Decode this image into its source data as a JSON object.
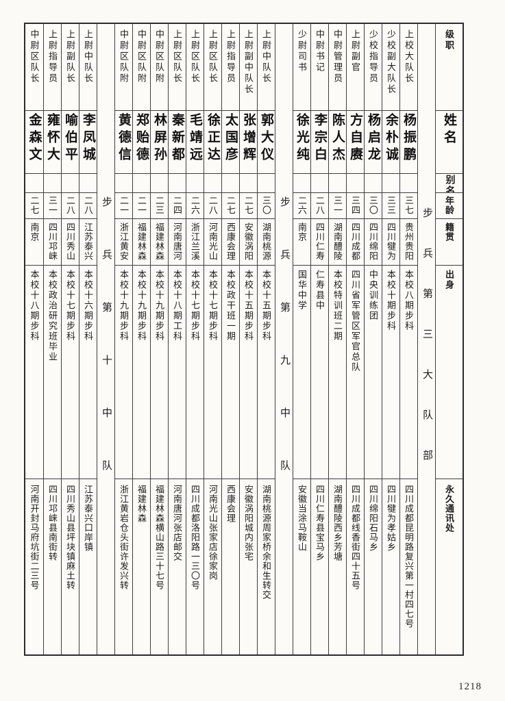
{
  "page_number": "1218",
  "column_headers": {
    "rank": "级职",
    "name": "姓名",
    "alias": "别名",
    "age": "年龄",
    "origin": "籍贯",
    "background": "出身",
    "address": "永久通讯处"
  },
  "sections": [
    {
      "title": "步兵第三大队部",
      "people": [
        {
          "rank": "上校大队长",
          "name": "杨振鹏",
          "alias": "",
          "age": "三七",
          "origin": "贵州贵阳",
          "background": "本校八期步科",
          "address": "四川成都昆明路复兴第一村四七号"
        },
        {
          "rank": "少校副大队长",
          "name": "余朴诚",
          "alias": "",
          "age": "三三",
          "origin": "四川犍为",
          "background": "本校十期步科",
          "address": "四川犍为孝姑乡"
        },
        {
          "rank": "少校指导员",
          "name": "杨启龙",
          "alias": "",
          "age": "三〇",
          "origin": "四川绵阳",
          "background": "中央训练团",
          "address": "四川绵阳石马乡"
        },
        {
          "rank": "上尉副官",
          "name": "方自赓",
          "alias": "",
          "age": "三四",
          "origin": "四川成都",
          "background": "四川省军管区军官总队",
          "address": "四川成都线香街四十五号"
        },
        {
          "rank": "中尉管理员",
          "name": "陈人杰",
          "alias": "",
          "age": "三一",
          "origin": "湖南醴陵",
          "background": "本校特训班二期",
          "address": "湖南醴陵西乡芳塘"
        },
        {
          "rank": "中尉书记",
          "name": "李宗白",
          "alias": "",
          "age": "二八",
          "origin": "四川仁寿",
          "background": "仁寿县中",
          "address": "四川仁寿县宝马乡"
        },
        {
          "rank": "少尉司书",
          "name": "徐光纯",
          "alias": "",
          "age": "二六",
          "origin": "南京",
          "background": "国华中学",
          "address": "安徽当涂马鞍山"
        }
      ]
    },
    {
      "title": "步兵第九中队",
      "people": [
        {
          "rank": "上尉中队长",
          "name": "郭大仪",
          "alias": "",
          "age": "三〇",
          "origin": "湖南桃源",
          "background": "本校十五期步科",
          "address": "湖南桃源周家桥余和生转交"
        },
        {
          "rank": "上尉副中队长",
          "name": "张增辉",
          "alias": "",
          "age": "二七",
          "origin": "安徽涡阳",
          "background": "本校十五期步科",
          "address": "安徽涡阳城内张宅"
        },
        {
          "rank": "上尉指导员",
          "name": "太国彦",
          "alias": "",
          "age": "二七",
          "origin": "西康会理",
          "background": "本校政干班一期",
          "address": "西康会理"
        },
        {
          "rank": "上尉区队长",
          "name": "徐正达",
          "alias": "",
          "age": "二八",
          "origin": "河南光山",
          "background": "本校十七期步科",
          "address": "河南光山张家店徐家岗"
        },
        {
          "rank": "上尉区队长",
          "name": "毛靖远",
          "alias": "",
          "age": "二六",
          "origin": "浙江兰溪",
          "background": "本校十七期步科",
          "address": "四川成都洛阳路一三〇号"
        },
        {
          "rank": "上尉区队长",
          "name": "秦新都",
          "alias": "",
          "age": "二四",
          "origin": "河南唐河",
          "background": "本校十八期工科",
          "address": "河南唐河张店邮交"
        },
        {
          "rank": "中尉区队附",
          "name": "林屏孙",
          "alias": "",
          "age": "二三",
          "origin": "福建林森",
          "background": "本校十九期步科",
          "address": "福建林森横山路三十七号"
        },
        {
          "rank": "中尉区队附",
          "name": "郑贻德",
          "alias": "",
          "age": "二一",
          "origin": "福建林森",
          "background": "本校十九期步科",
          "address": "福建林森"
        },
        {
          "rank": "中尉区队附",
          "name": "黄德信",
          "alias": "",
          "age": "二一",
          "origin": "浙江黄安",
          "background": "本校十九期步科",
          "address": "浙江黄岩仓头街许发兴转"
        }
      ]
    },
    {
      "title": "步兵第十中队",
      "people": [
        {
          "rank": "上尉中队长",
          "name": "李凤城",
          "alias": "",
          "age": "二八",
          "origin": "江苏泰兴",
          "background": "本校十六期步科",
          "address": "江苏泰兴口岸镇"
        },
        {
          "rank": "上尉副队长",
          "name": "喻伯平",
          "alias": "",
          "age": "二八",
          "origin": "四川秀山",
          "background": "本校十七期步科",
          "address": "四川秀山县坪块镇麻土转"
        },
        {
          "rank": "上尉指导员",
          "name": "雍怀大",
          "alias": "",
          "age": "三一",
          "origin": "四川邛崃",
          "background": "本校政治研究班毕业",
          "address": "四川邛崃县南街转"
        },
        {
          "rank": "中尉区队长",
          "name": "金森文",
          "alias": "",
          "age": "二七",
          "origin": "南京",
          "background": "本校十八期步科",
          "address": "河南开封马府坑街二三号"
        }
      ]
    }
  ]
}
